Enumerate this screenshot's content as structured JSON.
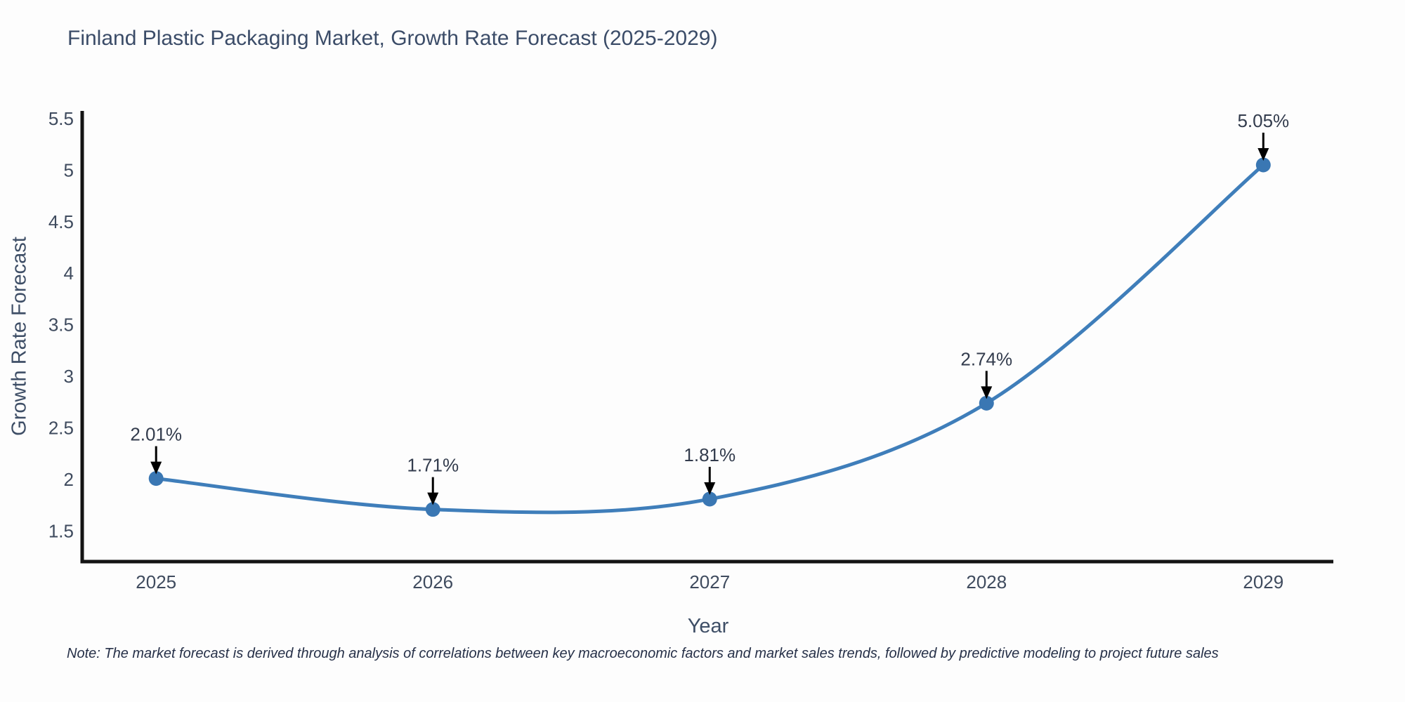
{
  "note": {
    "text": "Note: The market forecast is derived through analysis of correlations between key macroeconomic factors and market sales trends, followed by predictive modeling to project future sales"
  },
  "chart_data": {
    "type": "line",
    "curve": "spline",
    "title": "Finland Plastic Packaging Market, Growth Rate Forecast (2025-2029)",
    "xlabel": "Year",
    "ylabel": "Growth Rate Forecast",
    "x": [
      2025,
      2026,
      2027,
      2028,
      2029
    ],
    "values": [
      2.01,
      1.71,
      1.81,
      2.74,
      5.05
    ],
    "point_labels": [
      "2.01%",
      "1.71%",
      "1.81%",
      "2.74%",
      "5.05%"
    ],
    "xticks": [
      2025,
      2026,
      2027,
      2028,
      2029
    ],
    "xticklabels": [
      "2025",
      "2026",
      "2027",
      "2028",
      "2029"
    ],
    "yticks": [
      1.5,
      2,
      2.5,
      3,
      3.5,
      4,
      4.5,
      5,
      5.5
    ],
    "yticklabels": [
      "1.5",
      "2",
      "2.5",
      "3",
      "3.5",
      "4",
      "4.5",
      "5",
      "5.5"
    ],
    "xlim": [
      2024.733,
      2029.253
    ],
    "ylim": [
      1.204,
      5.574
    ],
    "grid": false,
    "legend": "none",
    "colors": {
      "line": "#3f7eba",
      "marker": "#3a77b3",
      "axis": "#141414",
      "annotation_arrow": "#000000",
      "annotation_text": "#333c4d",
      "tick_text": "#3f4b5e",
      "title_text": "#3b4c68"
    }
  }
}
